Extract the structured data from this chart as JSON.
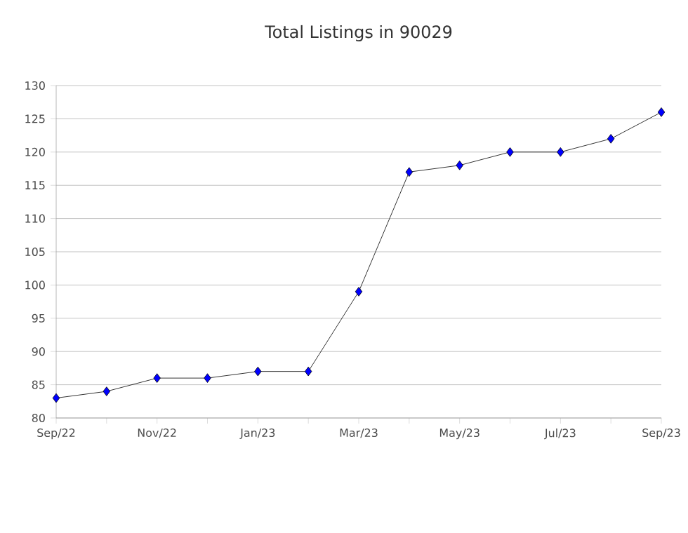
{
  "chart_data": {
    "type": "line",
    "title": "Total Listings in 90029",
    "categories": [
      "Sep/22",
      null,
      "Nov/22",
      null,
      "Jan/23",
      null,
      "Mar/23",
      null,
      "May/23",
      null,
      "Jul/23",
      null,
      "Sep/23"
    ],
    "values": [
      83,
      84,
      86,
      86,
      87,
      87,
      99,
      117,
      118,
      120,
      120,
      122,
      126
    ],
    "color": "#0000ff",
    "ylim": [
      80,
      130
    ],
    "yticks": [
      80,
      85,
      90,
      95,
      100,
      105,
      110,
      115,
      120,
      125,
      130
    ],
    "grid": "y",
    "marker": "diamond",
    "line_style": "solid"
  }
}
